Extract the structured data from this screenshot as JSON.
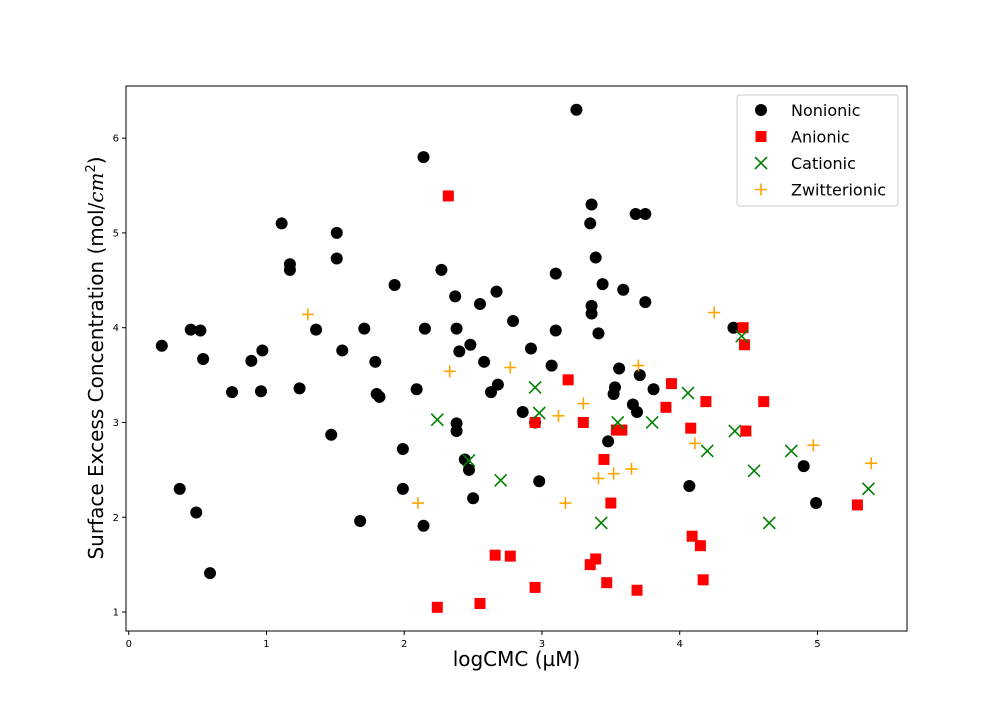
{
  "chart_data": {
    "type": "scatter",
    "xlabel": "logCMC (µM)",
    "ylabel_main": "Surface Excess Concentration (mol/",
    "ylabel_unit": "cm",
    "ylabel_sup": "2",
    "ylabel_end": ")",
    "xlim": [
      -0.02,
      5.65
    ],
    "ylim": [
      0.8,
      6.55
    ],
    "xticks": [
      0,
      1,
      2,
      3,
      4,
      5
    ],
    "yticks": [
      1,
      2,
      3,
      4,
      5,
      6
    ],
    "grid": false,
    "legend_position": "top-right",
    "series": [
      {
        "name": "Nonionic",
        "marker": "circle",
        "color": "#000000",
        "points": [
          [
            0.24,
            3.81
          ],
          [
            0.37,
            2.3
          ],
          [
            0.45,
            3.98
          ],
          [
            0.49,
            2.05
          ],
          [
            0.52,
            3.97
          ],
          [
            0.54,
            3.67
          ],
          [
            0.59,
            1.41
          ],
          [
            0.75,
            3.32
          ],
          [
            0.89,
            3.65
          ],
          [
            0.96,
            3.33
          ],
          [
            0.97,
            3.76
          ],
          [
            1.11,
            5.1
          ],
          [
            1.17,
            4.67
          ],
          [
            1.17,
            4.61
          ],
          [
            1.24,
            3.36
          ],
          [
            1.36,
            3.98
          ],
          [
            1.47,
            2.87
          ],
          [
            1.51,
            4.73
          ],
          [
            1.51,
            5.0
          ],
          [
            1.55,
            3.76
          ],
          [
            1.68,
            1.96
          ],
          [
            1.71,
            3.99
          ],
          [
            1.79,
            3.64
          ],
          [
            1.8,
            3.3
          ],
          [
            1.82,
            3.27
          ],
          [
            1.93,
            4.45
          ],
          [
            1.99,
            2.72
          ],
          [
            1.99,
            2.3
          ],
          [
            2.09,
            3.35
          ],
          [
            2.14,
            5.8
          ],
          [
            2.14,
            1.91
          ],
          [
            2.15,
            3.99
          ],
          [
            2.27,
            4.61
          ],
          [
            2.37,
            4.33
          ],
          [
            2.38,
            3.99
          ],
          [
            2.38,
            2.99
          ],
          [
            2.38,
            2.91
          ],
          [
            2.4,
            3.75
          ],
          [
            2.44,
            2.61
          ],
          [
            2.47,
            2.5
          ],
          [
            2.48,
            3.82
          ],
          [
            2.5,
            2.2
          ],
          [
            2.55,
            4.25
          ],
          [
            2.58,
            3.64
          ],
          [
            2.63,
            3.32
          ],
          [
            2.67,
            4.38
          ],
          [
            2.68,
            3.4
          ],
          [
            2.79,
            4.07
          ],
          [
            2.86,
            3.11
          ],
          [
            2.92,
            3.78
          ],
          [
            2.95,
            3.0
          ],
          [
            2.98,
            2.38
          ],
          [
            3.07,
            3.6
          ],
          [
            3.1,
            4.57
          ],
          [
            3.1,
            3.97
          ],
          [
            3.25,
            6.3
          ],
          [
            3.35,
            5.1
          ],
          [
            3.36,
            5.3
          ],
          [
            3.36,
            4.23
          ],
          [
            3.36,
            4.15
          ],
          [
            3.39,
            4.74
          ],
          [
            3.41,
            3.94
          ],
          [
            3.44,
            4.46
          ],
          [
            3.48,
            2.8
          ],
          [
            3.52,
            3.3
          ],
          [
            3.53,
            3.37
          ],
          [
            3.56,
            3.57
          ],
          [
            3.59,
            4.4
          ],
          [
            3.66,
            3.19
          ],
          [
            3.68,
            5.2
          ],
          [
            3.69,
            3.11
          ],
          [
            3.71,
            3.5
          ],
          [
            3.75,
            5.2
          ],
          [
            3.75,
            4.27
          ],
          [
            3.81,
            3.35
          ],
          [
            4.07,
            2.33
          ],
          [
            4.39,
            4.0
          ],
          [
            4.9,
            2.54
          ],
          [
            4.99,
            2.15
          ]
        ]
      },
      {
        "name": "Anionic",
        "marker": "square",
        "color": "#ff0000",
        "points": [
          [
            2.24,
            1.05
          ],
          [
            2.32,
            5.39
          ],
          [
            2.55,
            1.09
          ],
          [
            2.66,
            1.6
          ],
          [
            2.77,
            1.59
          ],
          [
            2.95,
            1.26
          ],
          [
            2.95,
            3.0
          ],
          [
            3.19,
            3.45
          ],
          [
            3.3,
            3.0
          ],
          [
            3.35,
            1.5
          ],
          [
            3.39,
            1.56
          ],
          [
            3.45,
            2.61
          ],
          [
            3.47,
            1.31
          ],
          [
            3.5,
            2.15
          ],
          [
            3.54,
            2.92
          ],
          [
            3.58,
            2.92
          ],
          [
            3.69,
            1.23
          ],
          [
            3.9,
            3.16
          ],
          [
            3.94,
            3.41
          ],
          [
            4.08,
            2.94
          ],
          [
            4.09,
            1.8
          ],
          [
            4.15,
            1.7
          ],
          [
            4.17,
            1.34
          ],
          [
            4.19,
            3.22
          ],
          [
            4.46,
            4.0
          ],
          [
            4.47,
            3.82
          ],
          [
            4.48,
            2.91
          ],
          [
            4.61,
            3.22
          ],
          [
            5.29,
            2.13
          ]
        ]
      },
      {
        "name": "Cationic",
        "marker": "x",
        "color": "#008000",
        "points": [
          [
            2.24,
            3.03
          ],
          [
            2.47,
            2.6
          ],
          [
            2.7,
            2.39
          ],
          [
            2.95,
            3.37
          ],
          [
            2.98,
            3.1
          ],
          [
            3.43,
            1.94
          ],
          [
            3.55,
            3.0
          ],
          [
            3.8,
            3.0
          ],
          [
            4.06,
            3.31
          ],
          [
            4.2,
            2.7
          ],
          [
            4.4,
            2.91
          ],
          [
            4.45,
            3.91
          ],
          [
            4.54,
            2.49
          ],
          [
            4.65,
            1.94
          ],
          [
            4.81,
            2.7
          ],
          [
            5.37,
            2.3
          ]
        ]
      },
      {
        "name": "Zwitterionic",
        "marker": "plus",
        "color": "#ffa500",
        "points": [
          [
            1.3,
            4.14
          ],
          [
            2.1,
            2.15
          ],
          [
            2.33,
            3.54
          ],
          [
            2.77,
            3.58
          ],
          [
            3.12,
            3.07
          ],
          [
            3.17,
            2.15
          ],
          [
            3.3,
            3.2
          ],
          [
            3.41,
            2.41
          ],
          [
            3.52,
            2.46
          ],
          [
            3.65,
            2.51
          ],
          [
            3.7,
            3.6
          ],
          [
            4.11,
            2.78
          ],
          [
            4.25,
            4.16
          ],
          [
            4.97,
            2.76
          ],
          [
            5.39,
            2.57
          ]
        ]
      }
    ]
  }
}
